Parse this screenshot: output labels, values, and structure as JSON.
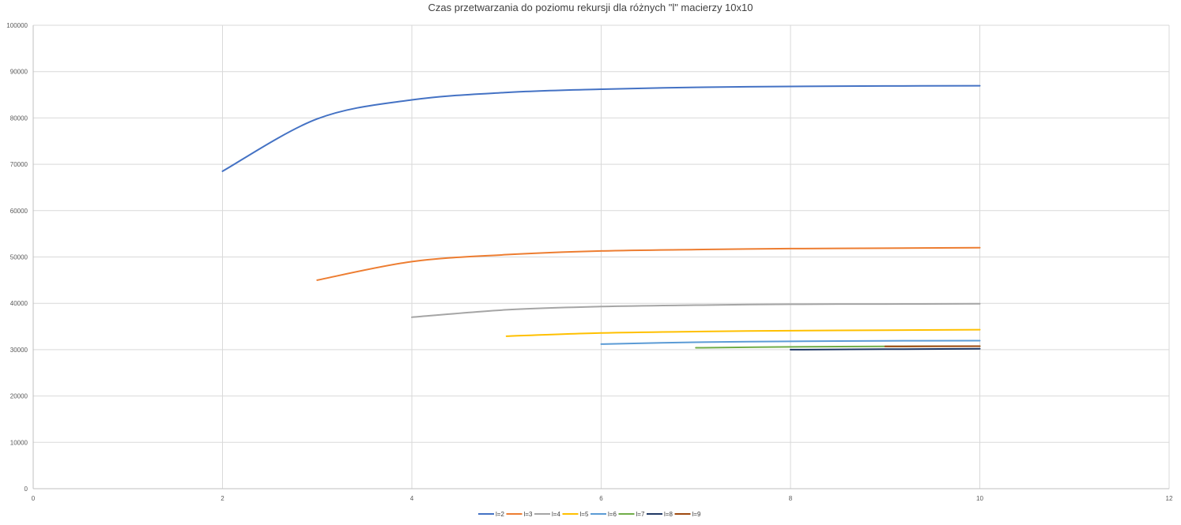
{
  "chart_data": {
    "type": "line",
    "title": "Czas przetwarzania do poziomu rekursji dla różnych \"l\" macierzy 10x10",
    "xlabel": "",
    "ylabel": "",
    "xlim": [
      0,
      12
    ],
    "ylim": [
      0,
      100000
    ],
    "x_ticks": [
      "0",
      "2",
      "4",
      "6",
      "8",
      "10",
      "12"
    ],
    "y_ticks": [
      "0",
      "10000",
      "20000",
      "30000",
      "40000",
      "50000",
      "60000",
      "70000",
      "80000",
      "90000",
      "100000"
    ],
    "grid": true,
    "smooth": true,
    "legend_position": "bottom",
    "series": [
      {
        "name": "l=2",
        "color": "#4472c4",
        "x": [
          2,
          3,
          4,
          5,
          6,
          7,
          8,
          9,
          10
        ],
        "y": [
          68500,
          79800,
          83900,
          85500,
          86200,
          86600,
          86800,
          86900,
          86950
        ]
      },
      {
        "name": "l=3",
        "color": "#ed7d31",
        "x": [
          3,
          4,
          5,
          6,
          7,
          8,
          9,
          10
        ],
        "y": [
          45000,
          49000,
          50500,
          51300,
          51600,
          51800,
          51900,
          52000
        ]
      },
      {
        "name": "l=4",
        "color": "#a5a5a5",
        "x": [
          4,
          5,
          6,
          7,
          8,
          9,
          10
        ],
        "y": [
          37000,
          38600,
          39300,
          39600,
          39800,
          39850,
          39900
        ]
      },
      {
        "name": "l=5",
        "color": "#ffc000",
        "x": [
          5,
          6,
          7,
          8,
          9,
          10
        ],
        "y": [
          32900,
          33600,
          33900,
          34100,
          34200,
          34300
        ]
      },
      {
        "name": "l=6",
        "color": "#5b9bd5",
        "x": [
          6,
          7,
          8,
          9,
          10
        ],
        "y": [
          31200,
          31600,
          31800,
          31900,
          31950
        ]
      },
      {
        "name": "l=7",
        "color": "#70ad47",
        "x": [
          7,
          8,
          9,
          10
        ],
        "y": [
          30400,
          30600,
          30700,
          30750
        ]
      },
      {
        "name": "l=8",
        "color": "#1f3864",
        "x": [
          8,
          9,
          10
        ],
        "y": [
          30000,
          30100,
          30200
        ]
      },
      {
        "name": "l=9",
        "color": "#9e480e",
        "x": [
          9,
          10
        ],
        "y": [
          30700,
          30750
        ]
      }
    ]
  }
}
